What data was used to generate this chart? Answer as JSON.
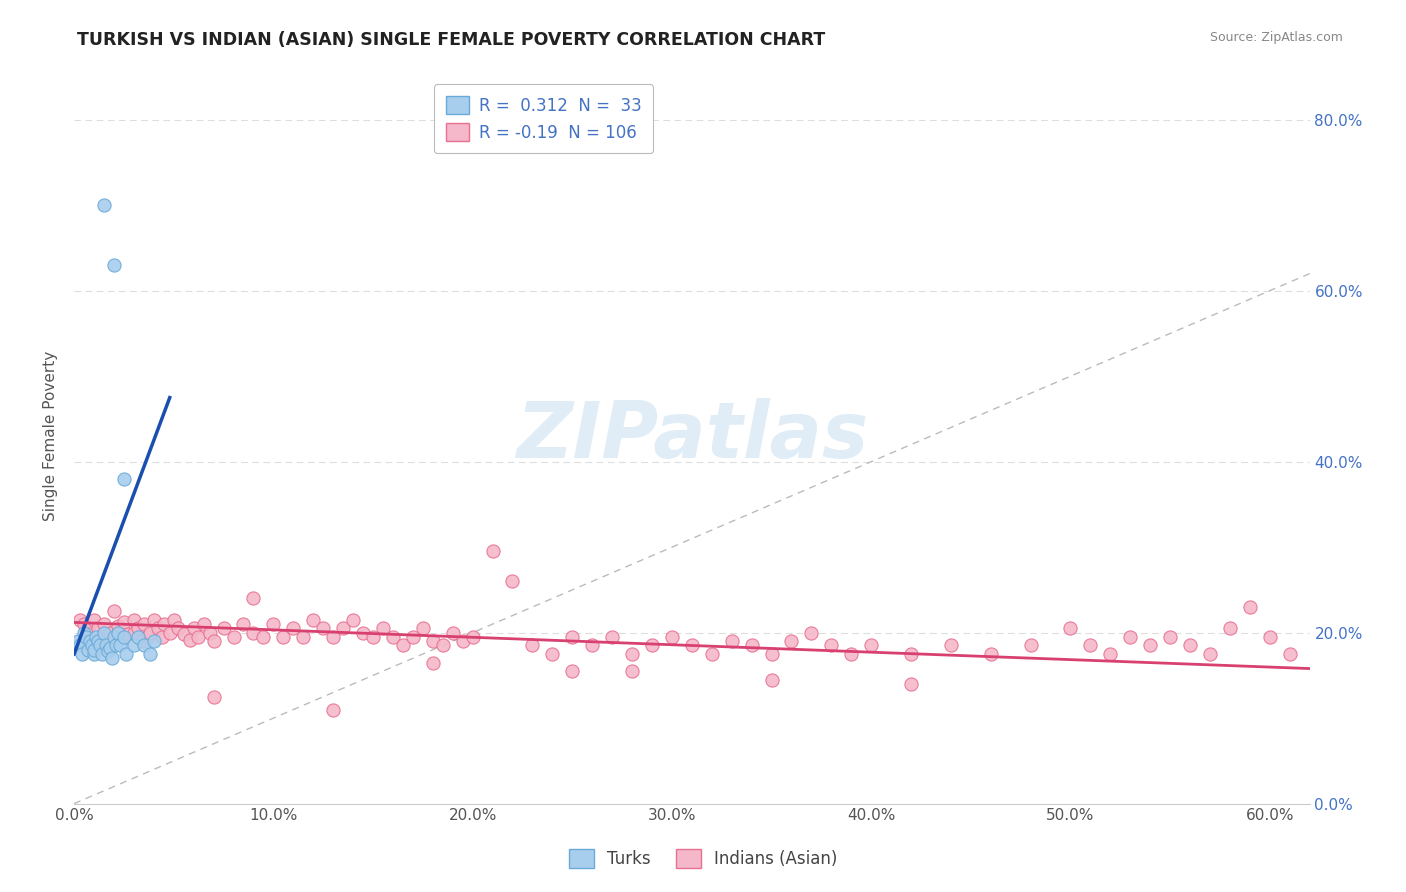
{
  "title": "TURKISH VS INDIAN (ASIAN) SINGLE FEMALE POVERTY CORRELATION CHART",
  "source": "Source: ZipAtlas.com",
  "ylabel": "Single Female Poverty",
  "xlim": [
    0.0,
    0.62
  ],
  "ylim": [
    0.0,
    0.86
  ],
  "x_ticks": [
    0.0,
    0.1,
    0.2,
    0.3,
    0.4,
    0.5,
    0.6
  ],
  "y_ticks": [
    0.0,
    0.2,
    0.4,
    0.6,
    0.8
  ],
  "turks_R": 0.312,
  "turks_N": 33,
  "indians_R": -0.19,
  "indians_N": 106,
  "turks_color": "#A8CEED",
  "turks_edge_color": "#6AAAD8",
  "indians_color": "#F5B8CB",
  "indians_edge_color": "#E87090",
  "scatter_size": 90,
  "trendline_diag_color": "#BBBBBB",
  "trendline_blue_color": "#1A4FAF",
  "trendline_pink_color": "#D84070",
  "bg_color": "#FFFFFF",
  "grid_color": "#DDDDDD",
  "title_color": "#222222",
  "right_tick_color": "#4472C4",
  "legend_label_turks": "Turks",
  "legend_label_indians": "Indians (Asian)",
  "turk_x": [
    0.002,
    0.003,
    0.004,
    0.005,
    0.006,
    0.007,
    0.008,
    0.009,
    0.01,
    0.01,
    0.011,
    0.012,
    0.013,
    0.014,
    0.015,
    0.016,
    0.017,
    0.018,
    0.019,
    0.02,
    0.021,
    0.022,
    0.023,
    0.025,
    0.026,
    0.03,
    0.032,
    0.035,
    0.038,
    0.04,
    0.015,
    0.02,
    0.025
  ],
  "turk_y": [
    0.19,
    0.185,
    0.175,
    0.2,
    0.195,
    0.18,
    0.19,
    0.185,
    0.175,
    0.18,
    0.195,
    0.19,
    0.185,
    0.175,
    0.2,
    0.185,
    0.178,
    0.182,
    0.17,
    0.195,
    0.185,
    0.2,
    0.185,
    0.195,
    0.175,
    0.185,
    0.195,
    0.185,
    0.175,
    0.19,
    0.7,
    0.63,
    0.38
  ],
  "indian_x": [
    0.003,
    0.005,
    0.007,
    0.008,
    0.01,
    0.012,
    0.015,
    0.016,
    0.017,
    0.018,
    0.02,
    0.022,
    0.025,
    0.025,
    0.027,
    0.03,
    0.03,
    0.032,
    0.034,
    0.035,
    0.037,
    0.038,
    0.04,
    0.042,
    0.044,
    0.045,
    0.048,
    0.05,
    0.052,
    0.055,
    0.058,
    0.06,
    0.062,
    0.065,
    0.068,
    0.07,
    0.075,
    0.08,
    0.085,
    0.09,
    0.095,
    0.1,
    0.105,
    0.11,
    0.115,
    0.12,
    0.125,
    0.13,
    0.135,
    0.14,
    0.145,
    0.15,
    0.155,
    0.16,
    0.165,
    0.17,
    0.175,
    0.18,
    0.185,
    0.19,
    0.195,
    0.2,
    0.21,
    0.22,
    0.23,
    0.24,
    0.25,
    0.26,
    0.27,
    0.28,
    0.29,
    0.3,
    0.31,
    0.32,
    0.33,
    0.34,
    0.35,
    0.36,
    0.37,
    0.38,
    0.39,
    0.4,
    0.42,
    0.44,
    0.46,
    0.48,
    0.5,
    0.51,
    0.52,
    0.53,
    0.54,
    0.55,
    0.56,
    0.57,
    0.58,
    0.59,
    0.6,
    0.61,
    0.09,
    0.28,
    0.35,
    0.42,
    0.18,
    0.25,
    0.07,
    0.13
  ],
  "indian_y": [
    0.215,
    0.21,
    0.205,
    0.198,
    0.215,
    0.205,
    0.21,
    0.195,
    0.188,
    0.2,
    0.225,
    0.208,
    0.195,
    0.212,
    0.198,
    0.215,
    0.2,
    0.205,
    0.19,
    0.21,
    0.195,
    0.2,
    0.215,
    0.205,
    0.195,
    0.21,
    0.2,
    0.215,
    0.205,
    0.198,
    0.192,
    0.205,
    0.195,
    0.21,
    0.2,
    0.19,
    0.205,
    0.195,
    0.21,
    0.2,
    0.195,
    0.21,
    0.195,
    0.205,
    0.195,
    0.215,
    0.205,
    0.195,
    0.205,
    0.215,
    0.2,
    0.195,
    0.205,
    0.195,
    0.185,
    0.195,
    0.205,
    0.19,
    0.185,
    0.2,
    0.19,
    0.195,
    0.295,
    0.26,
    0.185,
    0.175,
    0.195,
    0.185,
    0.195,
    0.175,
    0.185,
    0.195,
    0.185,
    0.175,
    0.19,
    0.185,
    0.175,
    0.19,
    0.2,
    0.185,
    0.175,
    0.185,
    0.175,
    0.185,
    0.175,
    0.185,
    0.205,
    0.185,
    0.175,
    0.195,
    0.185,
    0.195,
    0.185,
    0.175,
    0.205,
    0.23,
    0.195,
    0.175,
    0.24,
    0.155,
    0.145,
    0.14,
    0.165,
    0.155,
    0.125,
    0.11
  ],
  "turk_trend_x0": 0.0,
  "turk_trend_y0": 0.175,
  "turk_trend_x1": 0.048,
  "turk_trend_y1": 0.475,
  "indian_trend_x0": 0.0,
  "indian_trend_y0": 0.212,
  "indian_trend_x1": 0.62,
  "indian_trend_y1": 0.158
}
